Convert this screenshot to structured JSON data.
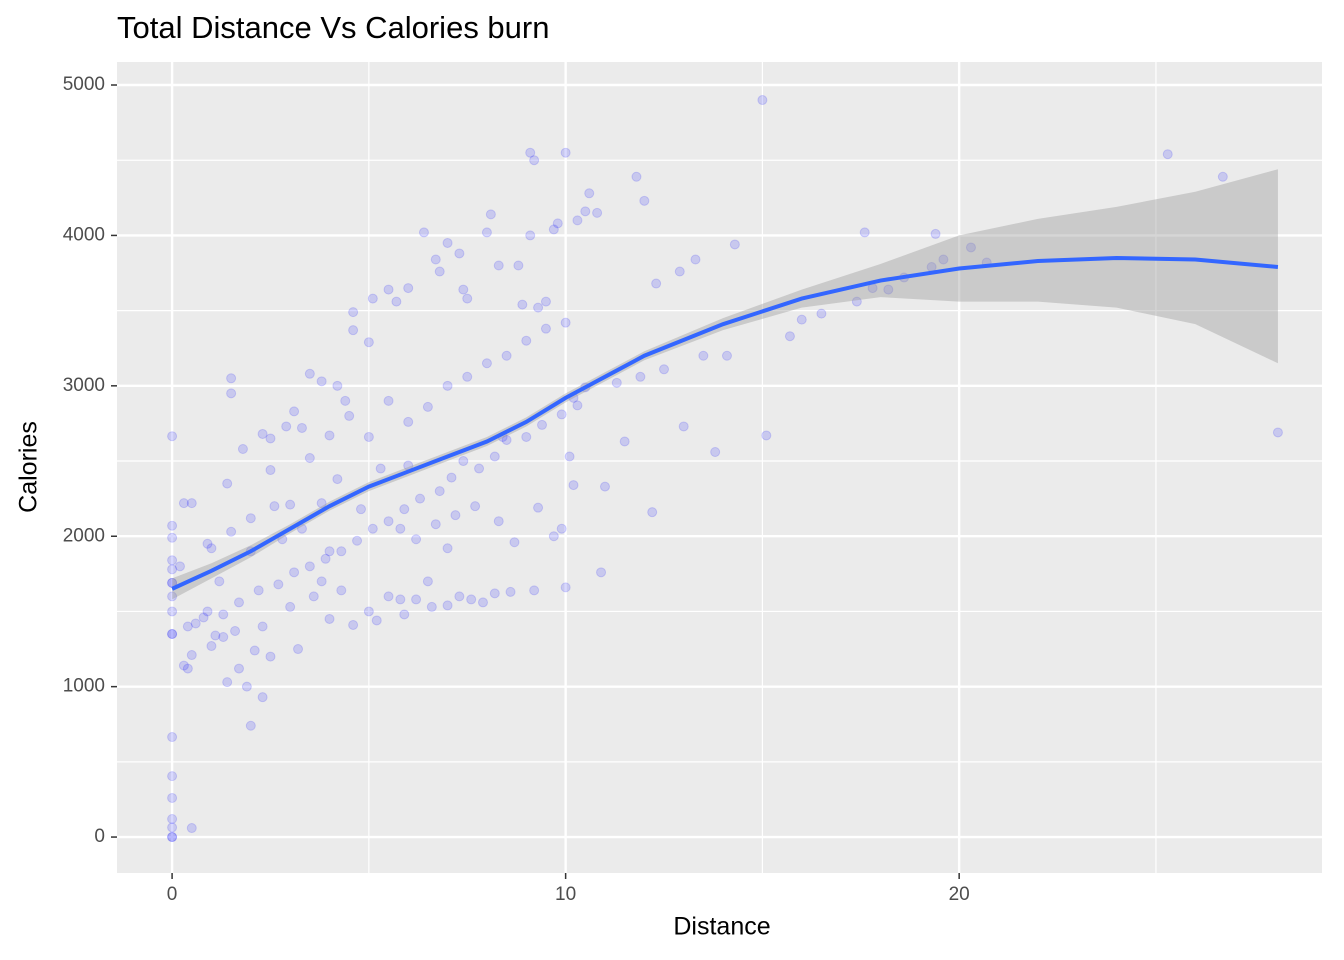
{
  "chart_data": {
    "type": "scatter",
    "title": "Total Distance Vs Calories burn",
    "x_label": "Distance",
    "y_label": "Calories",
    "xlim": [
      -1.4,
      29.22
    ],
    "ylim": [
      -239,
      5153
    ],
    "xticks": [
      0,
      10,
      20
    ],
    "yticks": [
      0,
      1000,
      2000,
      3000,
      4000,
      5000
    ],
    "minor_xticks": [
      5,
      15,
      25
    ],
    "minor_yticks": [
      500,
      1500,
      2500,
      3500,
      4500
    ],
    "grid": true,
    "point_color": "#0000ff",
    "point_opacity": 0.15,
    "x": [
      0,
      0,
      0,
      0,
      0,
      0,
      0,
      0,
      0,
      0,
      0,
      0,
      0,
      0,
      0,
      0,
      0,
      0,
      0.5,
      0.3,
      0.4,
      0.5,
      0.2,
      0.3,
      0.5,
      0.4,
      0.6,
      0.8,
      0.9,
      1.0,
      1.1,
      1.3,
      1.4,
      1.5,
      1.5,
      1.4,
      1.7,
      1.9,
      2.0,
      2.3,
      2.1,
      2.5,
      1.8,
      2.3,
      2.5,
      2.6,
      2.9,
      3.1,
      3.3,
      3.2,
      3.6,
      3.8,
      4.0,
      4.3,
      4.6,
      5.0,
      5.2,
      5.5,
      5.8,
      5.9,
      6.2,
      6.6,
      7.0,
      7.3,
      7.6,
      7.9,
      8.2,
      8.6,
      9.2,
      10.0,
      3.5,
      3.8,
      4.2,
      4.4,
      4.6,
      4.6,
      5.0,
      5.1,
      5.5,
      5.7,
      6.0,
      6.4,
      6.7,
      6.8,
      7.0,
      7.3,
      7.4,
      7.5,
      8.0,
      8.1,
      8.3,
      8.8,
      8.9,
      9.1,
      9.1,
      9.2,
      9.3,
      9.5,
      9.7,
      9.8,
      10.0,
      10.3,
      10.5,
      10.6,
      10.8,
      11.8,
      12.0,
      12.3,
      12.9,
      13.3,
      14.3,
      15.0,
      15.1,
      17.6,
      19.4,
      20.3,
      25.3,
      26.7,
      28.1,
      11.5,
      11.0,
      10.2,
      10.1,
      10.9,
      12.2,
      13.8,
      13.0,
      13.5,
      14.1,
      15.7,
      16.0,
      16.5,
      17.4,
      17.8,
      18.2,
      18.6,
      19.3,
      19.6,
      20.7,
      11.9,
      12.5,
      10.5,
      10.3,
      9.9,
      9.0,
      8.5,
      8.2,
      7.8,
      7.4,
      7.1,
      6.8,
      6.3,
      5.9,
      5.5,
      5.1,
      4.7,
      4.3,
      3.9,
      3.5,
      3.1,
      2.7,
      2.2,
      1.7,
      1.3,
      0.9,
      1.0,
      1.5,
      2.0,
      2.5,
      3.0,
      3.5,
      4.0,
      4.5,
      5.0,
      5.5,
      6.0,
      6.5,
      7.0,
      7.5,
      8.0,
      8.5,
      9.0,
      9.5,
      10.0,
      2.0,
      2.8,
      3.3,
      3.8,
      4.2,
      4.8,
      5.3,
      5.8,
      6.2,
      6.7,
      7.2,
      7.7,
      8.3,
      8.7,
      9.3,
      9.7,
      9.9,
      6.0,
      6.5,
      7.0,
      4.0,
      3.0,
      2.3,
      1.6,
      1.2,
      8.4,
      9.4,
      10.2,
      11.3
    ],
    "y": [
      0,
      0,
      64,
      120,
      260,
      405,
      665,
      1350,
      1350,
      1500,
      1690,
      1690,
      1840,
      1990,
      2070,
      2665,
      1600,
      1780,
      60,
      1140,
      1120,
      1210,
      1800,
      2220,
      2220,
      1400,
      1420,
      1460,
      1950,
      1270,
      1340,
      1330,
      2350,
      2950,
      3050,
      1030,
      1120,
      1000,
      740,
      930,
      1240,
      1200,
      2580,
      2680,
      2650,
      2200,
      2730,
      2830,
      2720,
      1250,
      1600,
      1700,
      1450,
      1640,
      1410,
      1500,
      1440,
      1600,
      1580,
      1480,
      1580,
      1530,
      1540,
      1600,
      1580,
      1560,
      1620,
      1630,
      1640,
      1660,
      3080,
      3030,
      3000,
      2900,
      3370,
      3490,
      3290,
      3580,
      3640,
      3560,
      3650,
      4020,
      3840,
      3760,
      3950,
      3880,
      3640,
      3580,
      4020,
      4140,
      3800,
      3800,
      3540,
      4000,
      4550,
      4500,
      3520,
      3560,
      4040,
      4080,
      4550,
      4100,
      4160,
      4280,
      4150,
      4390,
      4230,
      3680,
      3760,
      3840,
      3940,
      4900,
      2670,
      4020,
      4010,
      3920,
      4540,
      4390,
      2690,
      2630,
      2330,
      2340,
      2530,
      1760,
      2160,
      2560,
      2730,
      3200,
      3200,
      3330,
      3440,
      3480,
      3560,
      3650,
      3640,
      3720,
      3790,
      3840,
      3820,
      3060,
      3110,
      2990,
      2870,
      2810,
      2660,
      2640,
      2530,
      2450,
      2500,
      2390,
      2300,
      2250,
      2180,
      2100,
      2050,
      1970,
      1900,
      1850,
      1800,
      1760,
      1680,
      1640,
      1560,
      1480,
      1500,
      1920,
      2030,
      2120,
      2440,
      2210,
      2520,
      2670,
      2800,
      2660,
      2900,
      2760,
      2860,
      3000,
      3060,
      3150,
      3200,
      3300,
      3380,
      3420,
      1900,
      1980,
      2050,
      2220,
      2380,
      2180,
      2450,
      2050,
      1980,
      2080,
      2140,
      2200,
      2100,
      1960,
      2190,
      2000,
      2050,
      2470,
      1700,
      1920,
      1900,
      1530,
      1400,
      1370,
      1700,
      2660,
      2740,
      2920,
      3020
    ],
    "smooth": {
      "color": "#3366ff",
      "band_color": "#999999",
      "x": [
        0,
        1,
        2,
        3,
        4,
        5,
        6,
        7,
        8,
        9,
        10,
        11,
        12,
        14,
        16,
        18,
        20,
        22,
        24,
        26,
        28.1
      ],
      "y": [
        1650,
        1770,
        1900,
        2050,
        2200,
        2330,
        2430,
        2530,
        2630,
        2760,
        2920,
        3060,
        3200,
        3410,
        3580,
        3700,
        3780,
        3830,
        3850,
        3840,
        3790
      ],
      "lower": [
        1580,
        1720,
        1860,
        2020,
        2170,
        2300,
        2400,
        2500,
        2600,
        2730,
        2890,
        3030,
        3170,
        3370,
        3520,
        3590,
        3560,
        3560,
        3520,
        3410,
        3150
      ],
      "upper": [
        1720,
        1820,
        1940,
        2080,
        2230,
        2360,
        2460,
        2560,
        2660,
        2790,
        2950,
        3090,
        3230,
        3450,
        3640,
        3810,
        4000,
        4110,
        4190,
        4290,
        4440
      ]
    }
  }
}
